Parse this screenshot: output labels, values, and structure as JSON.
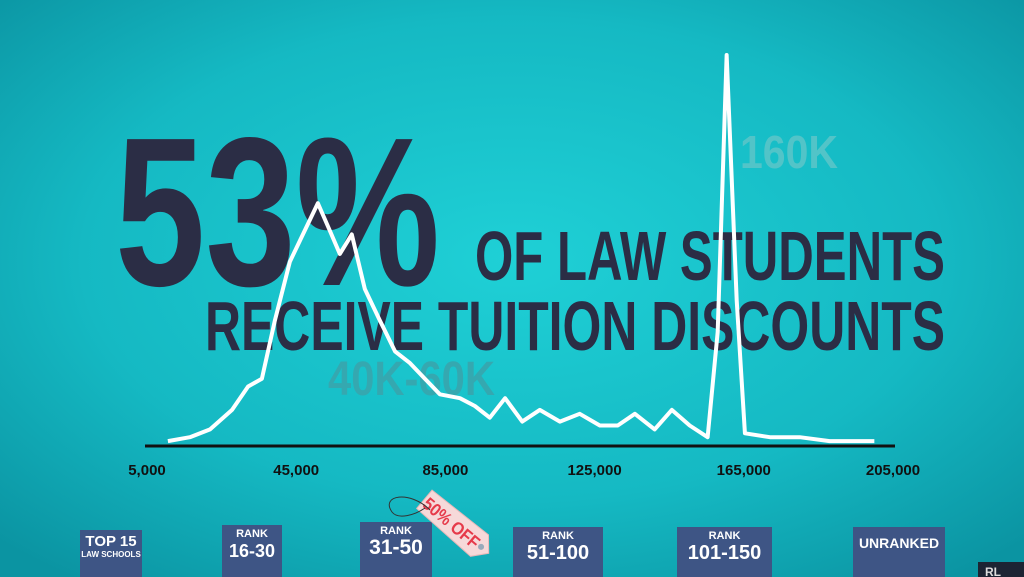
{
  "chart_data": {
    "type": "line",
    "headline": {
      "big": "53%",
      "line1": "OF LAW STUDENTS",
      "line2": "RECEIVE TUITION DISCOUNTS"
    },
    "annotations": [
      {
        "text": "160K"
      },
      {
        "text": "40K-60K"
      }
    ],
    "x": [
      10600,
      16500,
      21900,
      27800,
      32100,
      35800,
      39300,
      43300,
      47300,
      50800,
      54000,
      56700,
      59900,
      63400,
      67400,
      71500,
      75500,
      79500,
      83500,
      88900,
      92900,
      96900,
      101000,
      105600,
      110300,
      115700,
      121000,
      126400,
      131200,
      135800,
      141100,
      145700,
      150500,
      155300,
      158000,
      160400,
      163100,
      165300,
      172000,
      180000,
      188000,
      200000
    ],
    "values": [
      1,
      2,
      4,
      9,
      15,
      17,
      32,
      47,
      55,
      62,
      55,
      49,
      54,
      40,
      32,
      24,
      21,
      17,
      13,
      12,
      10,
      7,
      12,
      6,
      9,
      6,
      8,
      5,
      5,
      8,
      4,
      9,
      5,
      2,
      29,
      100,
      37,
      3,
      2,
      2,
      1,
      1
    ],
    "color": "#ffffff",
    "xlim": [
      5000,
      205000
    ],
    "xticks": [
      {
        "value": 5000,
        "label": "5,000"
      },
      {
        "value": 45000,
        "label": "45,000"
      },
      {
        "value": 85000,
        "label": "85,000"
      },
      {
        "value": 125000,
        "label": "125,000"
      },
      {
        "value": 165000,
        "label": "165,000"
      },
      {
        "value": 205000,
        "label": "205,000"
      }
    ],
    "ylim": [
      0,
      100
    ]
  },
  "ranks": [
    {
      "top": "TOP 15",
      "bottom": "LAW SCHOOLS"
    },
    {
      "top": "RANK",
      "bottom": "16-30"
    },
    {
      "top": "RANK",
      "bottom": "31-50"
    },
    {
      "top": "RANK",
      "bottom": "51-100"
    },
    {
      "top": "RANK",
      "bottom": "101-150"
    },
    {
      "top": "UNRANKED"
    }
  ],
  "tag": "50% OFF",
  "corner": "RL"
}
